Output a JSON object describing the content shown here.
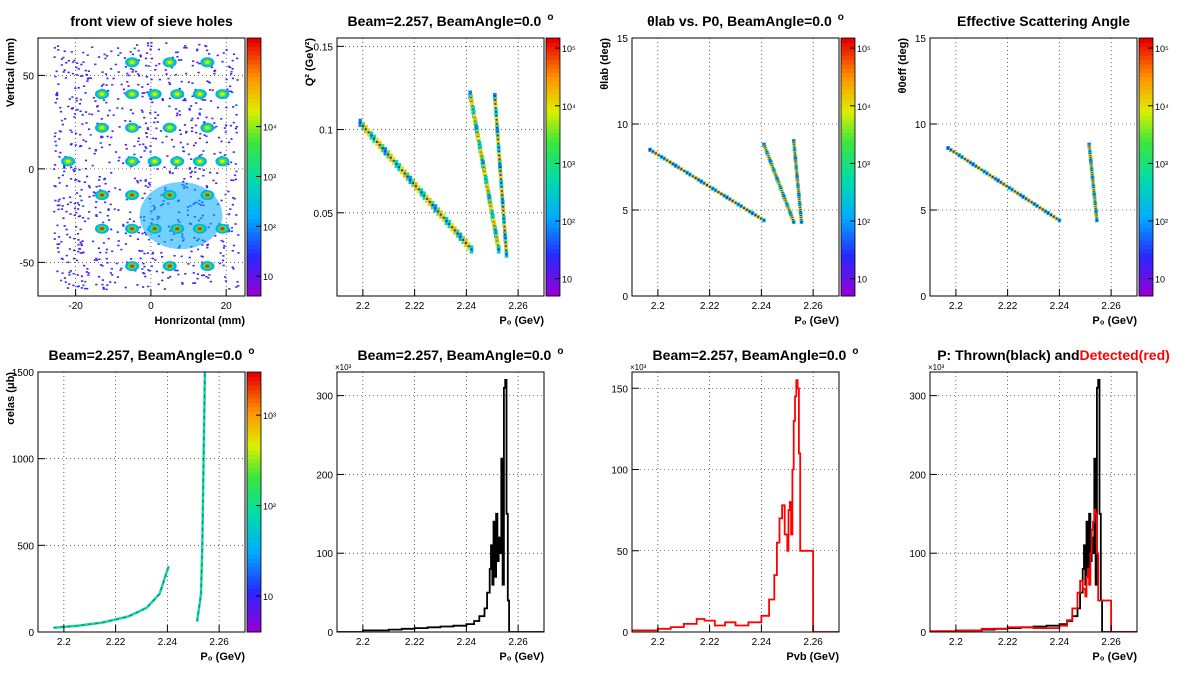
{
  "colors": {
    "thrown": "#000000",
    "detected": "#ff0000",
    "frame": "#000000"
  },
  "palette": "rainbow",
  "chart_data": [
    {
      "type": "heatmap",
      "title": "front view of sieve holes",
      "xlabel": "Honrizontal (mm)",
      "ylabel": "Vertical (mm)",
      "xlim": [
        -30,
        25
      ],
      "ylim": [
        -68,
        70
      ],
      "xticks": [
        -20,
        0,
        20
      ],
      "yticks": [
        -50,
        0,
        50
      ],
      "grid": true,
      "zscale": "log",
      "zlim": [
        4,
        600000
      ],
      "zticks": [
        {
          "v": 10,
          "t": "10"
        },
        {
          "v": 100,
          "t": "10²"
        },
        {
          "v": 1000,
          "t": "10³"
        },
        {
          "v": 10000,
          "t": "10⁴"
        }
      ],
      "sieve": {
        "rows": [
          {
            "y": 57,
            "x": [
              -5,
              5,
              15
            ]
          },
          {
            "y": 40,
            "x": [
              -13,
              -5,
              1,
              7,
              13,
              19
            ]
          },
          {
            "y": 22,
            "x": [
              -13,
              -5,
              5,
              15
            ]
          },
          {
            "y": 4,
            "x": [
              -22,
              -5,
              1,
              7,
              13,
              19
            ]
          },
          {
            "y": -14,
            "x": [
              -13,
              -5,
              5,
              15
            ]
          },
          {
            "y": -32,
            "x": [
              -13,
              -5,
              1,
              7,
              13,
              19
            ]
          },
          {
            "y": -52,
            "x": [
              -5,
              5,
              15
            ]
          }
        ]
      }
    },
    {
      "type": "heatmap",
      "title": "Beam=2.257, BeamAngle=0.0",
      "title_suffix": "o",
      "xlabel": "P₀ (GeV)",
      "ylabel": "Q² (GeV²)",
      "xlim": [
        2.19,
        2.27
      ],
      "ylim": [
        0,
        0.155
      ],
      "xticks": [
        2.2,
        2.22,
        2.24,
        2.26
      ],
      "xticklabels": [
        "2.2",
        "2.22",
        "2.24",
        "2.26"
      ],
      "yticks": [
        0.05,
        0.1,
        0.15
      ],
      "yticklabels": [
        "0.05",
        "0.1",
        "0.15"
      ],
      "grid": true,
      "zscale": "log",
      "zlim": [
        5,
        150000
      ],
      "zticks": [
        {
          "v": 10,
          "t": "10"
        },
        {
          "v": 100,
          "t": "10²"
        },
        {
          "v": 1000,
          "t": "10³"
        },
        {
          "v": 10000,
          "t": "10⁴"
        },
        {
          "v": 100000,
          "t": "10⁵"
        }
      ],
      "bands": [
        {
          "x0": 2.199,
          "y0": 0.104,
          "x1": 2.242,
          "y1": 0.028,
          "w": 0.005
        },
        {
          "x0": 2.2415,
          "y0": 0.121,
          "x1": 2.2525,
          "y1": 0.028,
          "w": 0.005
        },
        {
          "x0": 2.251,
          "y0": 0.12,
          "x1": 2.2555,
          "y1": 0.025,
          "w": 0.004
        }
      ]
    },
    {
      "type": "heatmap",
      "title": "θlab vs. P0, BeamAngle=0.0",
      "title_suffix": "o",
      "xlabel": "P₀ (GeV)",
      "ylabel": "θlab (deg)",
      "xlim": [
        2.19,
        2.27
      ],
      "ylim": [
        0,
        15
      ],
      "xticks": [
        2.2,
        2.22,
        2.24,
        2.26
      ],
      "xticklabels": [
        "2.2",
        "2.22",
        "2.24",
        "2.26"
      ],
      "yticks": [
        0,
        5,
        10,
        15
      ],
      "yticklabels": [
        "0",
        "5",
        "10",
        "15"
      ],
      "grid": true,
      "zscale": "log",
      "zlim": [
        5,
        150000
      ],
      "zticks": [
        {
          "v": 10,
          "t": "10"
        },
        {
          "v": 100,
          "t": "10²"
        },
        {
          "v": 1000,
          "t": "10³"
        },
        {
          "v": 10000,
          "t": "10⁴"
        },
        {
          "v": 100000,
          "t": "10⁵"
        }
      ],
      "bands": [
        {
          "x0": 2.197,
          "y0": 8.5,
          "x1": 2.241,
          "y1": 4.4,
          "w": 0.22
        },
        {
          "x0": 2.241,
          "y0": 8.8,
          "x1": 2.2525,
          "y1": 4.3,
          "w": 0.2
        },
        {
          "x0": 2.2525,
          "y0": 9.0,
          "x1": 2.2555,
          "y1": 4.3,
          "w": 0.18
        }
      ]
    },
    {
      "type": "heatmap",
      "title": "Effective Scattering Angle",
      "xlabel": "P₀ (GeV)",
      "ylabel": "θ0eff (deg)",
      "xlim": [
        2.19,
        2.27
      ],
      "ylim": [
        0,
        15
      ],
      "xticks": [
        2.2,
        2.22,
        2.24,
        2.26
      ],
      "xticklabels": [
        "2.2",
        "2.22",
        "2.24",
        "2.26"
      ],
      "yticks": [
        0,
        5,
        10,
        15
      ],
      "yticklabels": [
        "0",
        "5",
        "10",
        "15"
      ],
      "grid": true,
      "zscale": "log",
      "zlim": [
        5,
        150000
      ],
      "zticks": [
        {
          "v": 10,
          "t": "10"
        },
        {
          "v": 100,
          "t": "10²"
        },
        {
          "v": 1000,
          "t": "10³"
        },
        {
          "v": 10000,
          "t": "10⁴"
        },
        {
          "v": 100000,
          "t": "10⁵"
        }
      ],
      "bands": [
        {
          "x0": 2.197,
          "y0": 8.6,
          "x1": 2.24,
          "y1": 4.4,
          "w": 0.22
        },
        {
          "x0": 2.2515,
          "y0": 8.8,
          "x1": 2.2545,
          "y1": 4.4,
          "w": 0.18
        }
      ]
    },
    {
      "type": "heatmap",
      "title": "Beam=2.257, BeamAngle=0.0",
      "title_suffix": "o",
      "xlabel": "P₀ (GeV)",
      "ylabel": "σelas (μb)",
      "xlim": [
        2.19,
        2.27
      ],
      "ylim": [
        0,
        1500
      ],
      "xticks": [
        2.2,
        2.22,
        2.24,
        2.26
      ],
      "xticklabels": [
        "2.2",
        "2.22",
        "2.24",
        "2.26"
      ],
      "yticks": [
        0,
        500,
        1000,
        1500
      ],
      "yticklabels": [
        "0",
        "500",
        "1000",
        "1500"
      ],
      "grid": true,
      "zscale": "log",
      "zlim": [
        4,
        3000
      ],
      "zticks": [
        {
          "v": 10,
          "t": "10"
        },
        {
          "v": 100,
          "t": "10²"
        },
        {
          "v": 1000,
          "t": "10³"
        }
      ],
      "curves": [
        {
          "points": [
            [
              2.196,
              25
            ],
            [
              2.205,
              35
            ],
            [
              2.215,
              55
            ],
            [
              2.225,
              90
            ],
            [
              2.232,
              140
            ],
            [
              2.237,
              220
            ],
            [
              2.2405,
              380
            ]
          ],
          "w": 2.5
        },
        {
          "points": [
            [
              2.2515,
              60
            ],
            [
              2.253,
              220
            ],
            [
              2.2535,
              500
            ],
            [
              2.254,
              1000
            ],
            [
              2.2545,
              1500
            ]
          ],
          "w": 2.5
        }
      ]
    },
    {
      "type": "line",
      "title": "Beam=2.257, BeamAngle=0.0",
      "title_suffix": "o",
      "xlabel": "P₀ (GeV)",
      "ylabel": "",
      "multiplier": "×10³",
      "xlim": [
        2.19,
        2.27
      ],
      "ylim": [
        0,
        330
      ],
      "xticks": [
        2.2,
        2.22,
        2.24,
        2.26
      ],
      "xticklabels": [
        "2.2",
        "2.22",
        "2.24",
        "2.26"
      ],
      "yticks": [
        0,
        100,
        200,
        300
      ],
      "yticklabels": [
        "0",
        "100",
        "200",
        "300"
      ],
      "grid": true,
      "series": [
        {
          "color": "#000000",
          "x": [
            2.19,
            2.195,
            2.2,
            2.21,
            2.215,
            2.22,
            2.225,
            2.23,
            2.235,
            2.24,
            2.243,
            2.245,
            2.247,
            2.248,
            2.249,
            2.2495,
            2.25,
            2.2505,
            2.251,
            2.2515,
            2.252,
            2.2525,
            2.253,
            2.2535,
            2.254,
            2.2545,
            2.255,
            2.2555,
            2.256,
            2.2565,
            2.26,
            2.27
          ],
          "y": [
            0,
            0,
            2,
            3,
            4,
            5,
            6,
            7,
            8,
            10,
            14,
            20,
            30,
            50,
            80,
            110,
            60,
            140,
            70,
            150,
            90,
            120,
            100,
            220,
            60,
            310,
            320,
            150,
            40,
            0,
            0,
            0
          ]
        }
      ]
    },
    {
      "type": "line",
      "title": "Beam=2.257, BeamAngle=0.0",
      "title_suffix": "o",
      "xlabel": "Pvb (GeV)",
      "ylabel": "",
      "multiplier": "×10³",
      "xlim": [
        2.19,
        2.27
      ],
      "ylim": [
        0,
        160
      ],
      "xticks": [
        2.2,
        2.22,
        2.24,
        2.26
      ],
      "xticklabels": [
        "2.2",
        "2.22",
        "2.24",
        "2.26"
      ],
      "yticks": [
        0,
        50,
        100,
        150
      ],
      "yticklabels": [
        "0",
        "50",
        "100",
        "150"
      ],
      "grid": true,
      "series": [
        {
          "color": "#ff0000",
          "x": [
            2.19,
            2.2,
            2.205,
            2.21,
            2.215,
            2.218,
            2.222,
            2.226,
            2.23,
            2.235,
            2.24,
            2.243,
            2.245,
            2.246,
            2.247,
            2.248,
            2.249,
            2.25,
            2.2505,
            2.251,
            2.2515,
            2.252,
            2.2525,
            2.253,
            2.2535,
            2.254,
            2.2545,
            2.255,
            2.26,
            2.27
          ],
          "y": [
            1,
            2,
            3,
            5,
            8,
            7,
            4,
            6,
            4,
            6,
            10,
            20,
            35,
            55,
            70,
            78,
            60,
            50,
            75,
            80,
            60,
            100,
            130,
            145,
            155,
            150,
            110,
            50,
            0,
            0
          ]
        }
      ]
    },
    {
      "type": "line",
      "title": "P: Thrown(black) and",
      "title_red": "Detected(red)",
      "xlabel": "P₀ (GeV)",
      "ylabel": "",
      "multiplier": "×10³",
      "xlim": [
        2.19,
        2.27
      ],
      "ylim": [
        0,
        330
      ],
      "xticks": [
        2.2,
        2.22,
        2.24,
        2.26
      ],
      "xticklabels": [
        "2.2",
        "2.22",
        "2.24",
        "2.26"
      ],
      "yticks": [
        0,
        100,
        200,
        300
      ],
      "yticklabels": [
        "0",
        "100",
        "200",
        "300"
      ],
      "grid": true,
      "series": [
        {
          "color": "#000000",
          "x": [
            2.19,
            2.195,
            2.2,
            2.21,
            2.215,
            2.22,
            2.225,
            2.23,
            2.235,
            2.24,
            2.243,
            2.245,
            2.247,
            2.248,
            2.249,
            2.2495,
            2.25,
            2.2505,
            2.251,
            2.2515,
            2.252,
            2.2525,
            2.253,
            2.2535,
            2.254,
            2.2545,
            2.255,
            2.2555,
            2.256,
            2.2565,
            2.26,
            2.27
          ],
          "y": [
            0,
            0,
            2,
            3,
            4,
            5,
            6,
            7,
            8,
            10,
            14,
            20,
            30,
            50,
            80,
            110,
            60,
            140,
            70,
            150,
            90,
            120,
            100,
            220,
            60,
            310,
            320,
            150,
            40,
            0,
            0,
            0
          ]
        },
        {
          "color": "#ff0000",
          "x": [
            2.19,
            2.2,
            2.21,
            2.22,
            2.23,
            2.24,
            2.243,
            2.245,
            2.247,
            2.248,
            2.249,
            2.25,
            2.2505,
            2.251,
            2.2515,
            2.252,
            2.2525,
            2.253,
            2.2535,
            2.254,
            2.2545,
            2.255,
            2.26,
            2.27
          ],
          "y": [
            1,
            2,
            4,
            6,
            5,
            8,
            15,
            30,
            50,
            65,
            55,
            45,
            70,
            80,
            60,
            100,
            130,
            140,
            155,
            150,
            100,
            40,
            0,
            0
          ]
        }
      ]
    }
  ]
}
